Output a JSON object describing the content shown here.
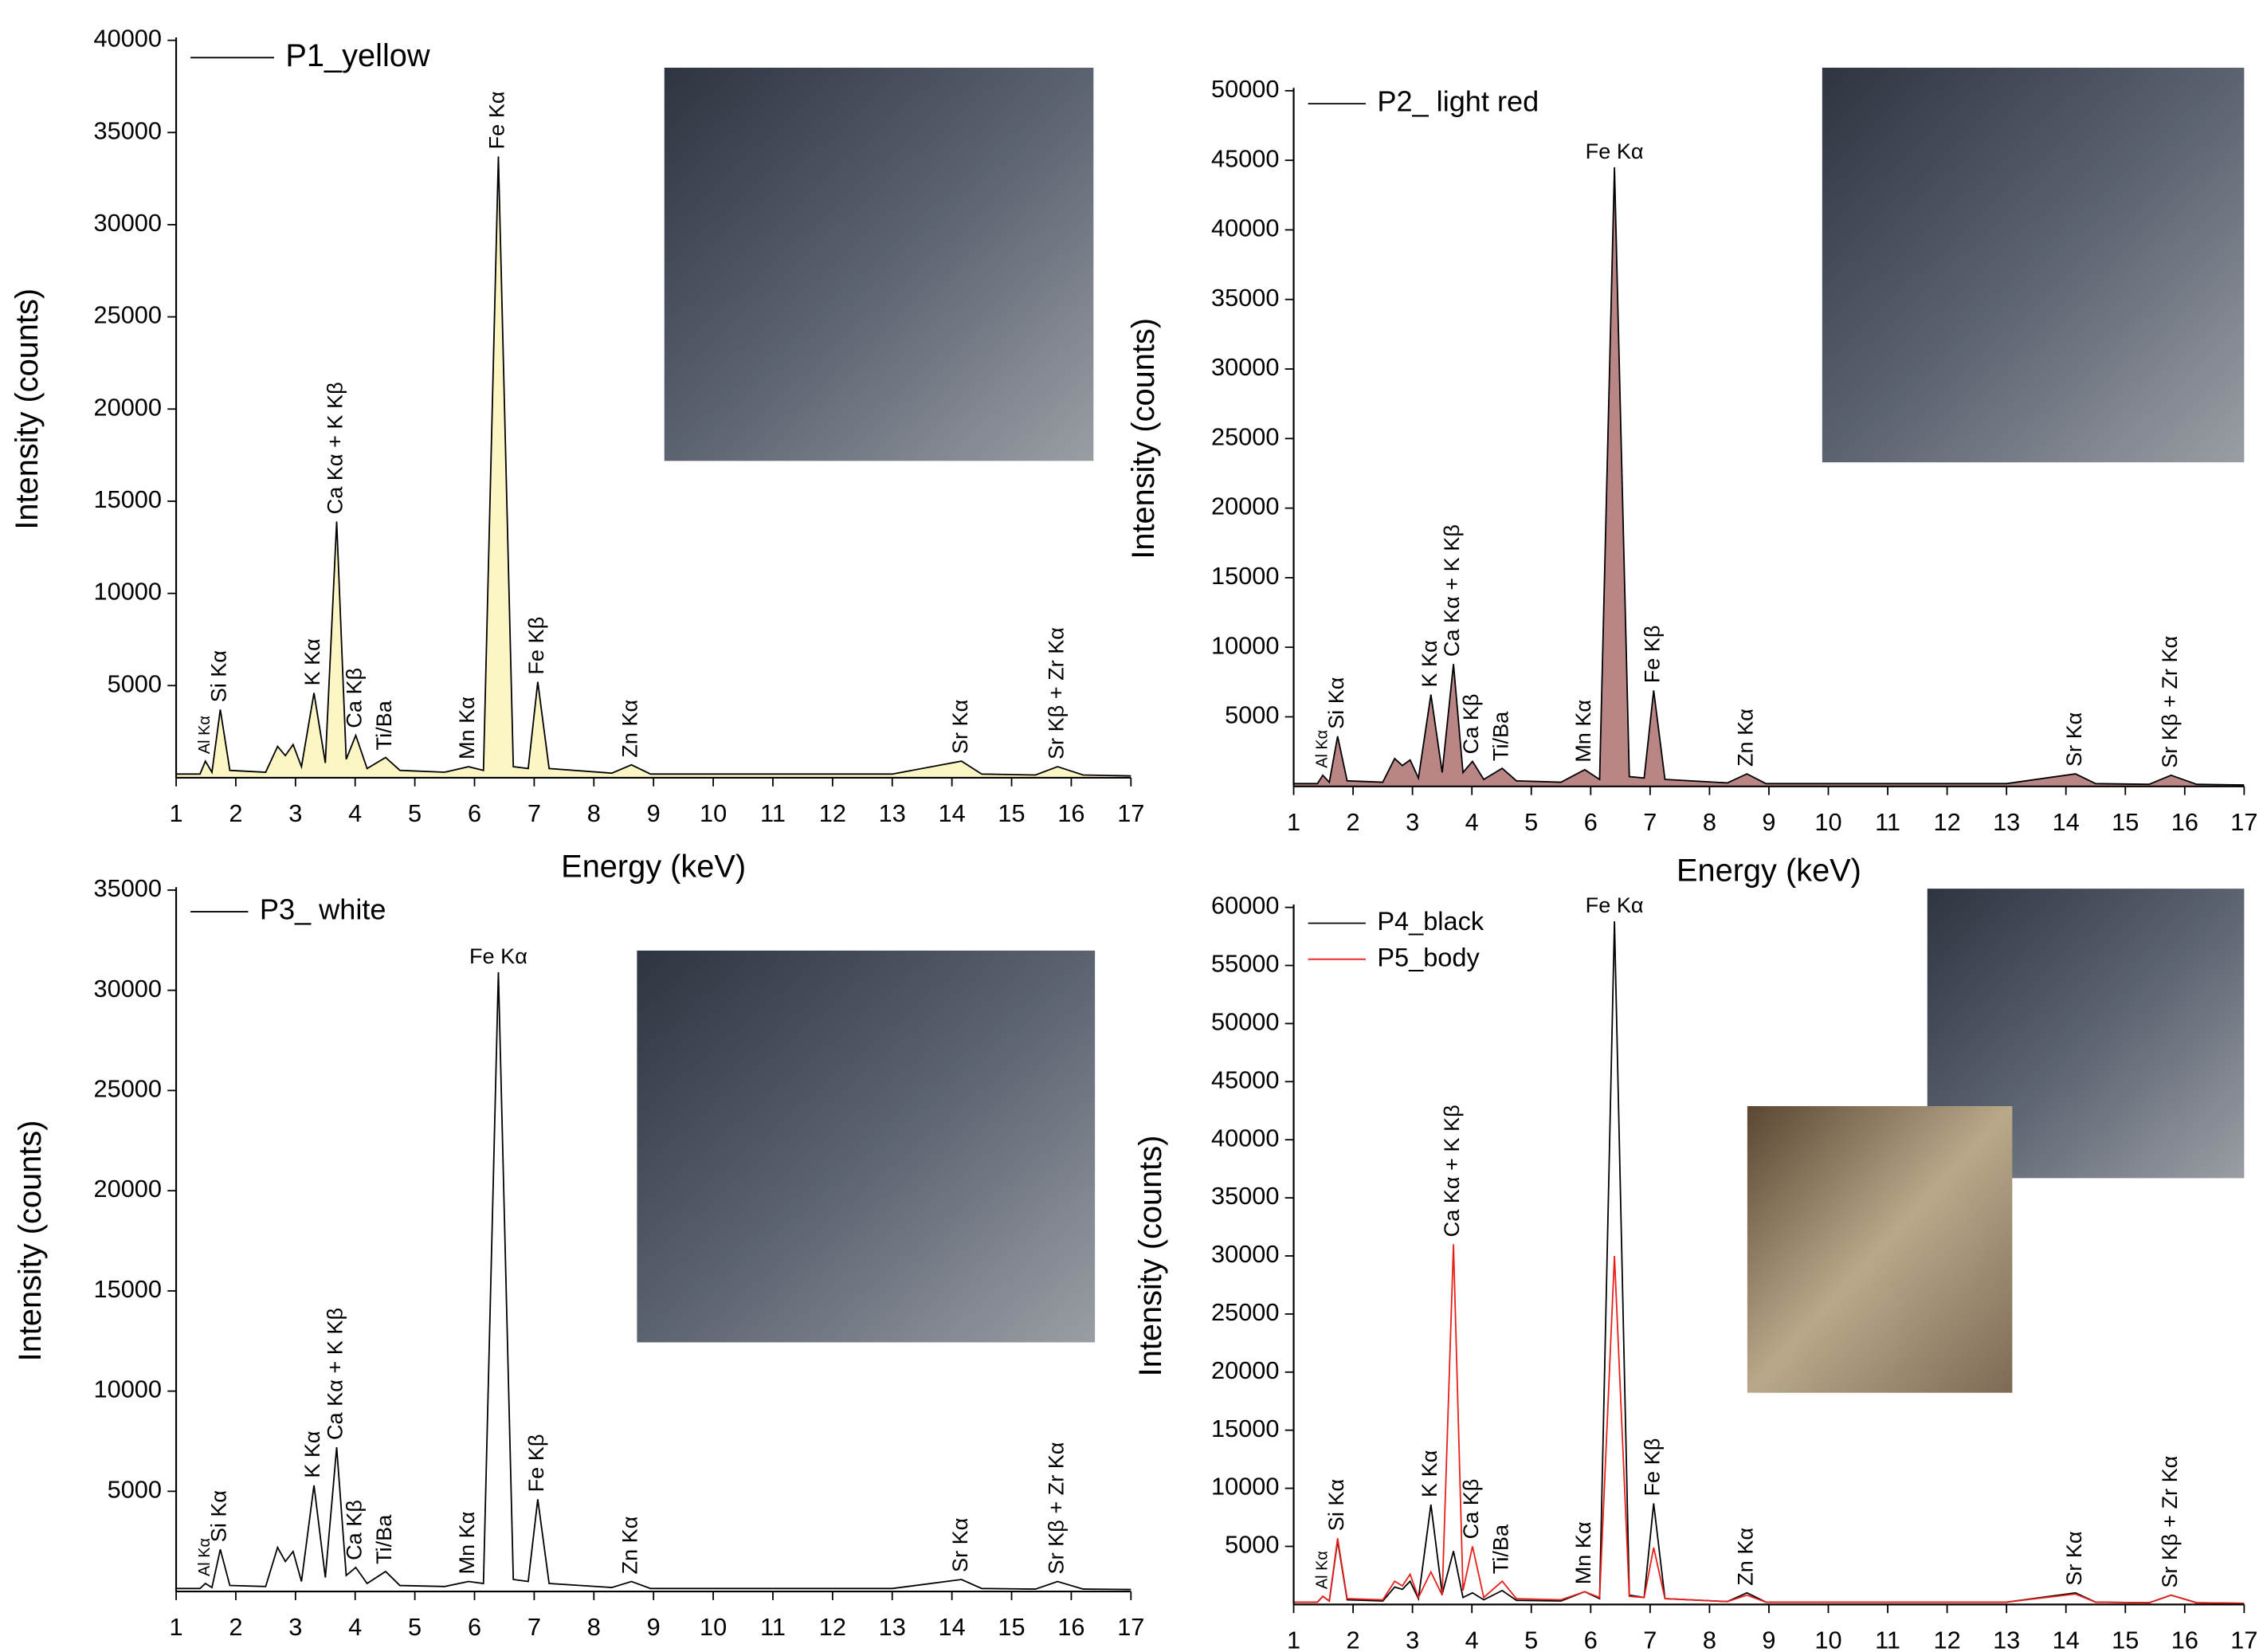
{
  "chart_data": [
    {
      "type": "line",
      "legend": "top-left",
      "x": [
        1,
        1.4,
        1.49,
        1.6,
        1.74,
        1.9,
        2.5,
        2.7,
        2.83,
        2.96,
        3.1,
        3.31,
        3.5,
        3.69,
        3.85,
        4.01,
        4.2,
        4.51,
        4.75,
        5.5,
        5.9,
        6.15,
        6.4,
        6.65,
        6.9,
        7.06,
        7.25,
        8.3,
        8.63,
        8.95,
        13,
        14.16,
        14.5,
        15.4,
        15.77,
        16.2,
        17
      ],
      "series": [
        {
          "name": "P1_yellow",
          "color": "#000000",
          "fill": "#fbf6c4",
          "values": [
            200,
            200,
            900,
            300,
            3700,
            400,
            300,
            1700,
            1200,
            1800,
            600,
            4600,
            800,
            13900,
            1000,
            2300,
            500,
            1100,
            400,
            300,
            600,
            400,
            33700,
            600,
            500,
            5200,
            500,
            250,
            700,
            200,
            200,
            900,
            200,
            150,
            600,
            150,
            100
          ]
        }
      ],
      "xlim": [
        1,
        17
      ],
      "xticks": [
        1,
        2,
        3,
        4,
        5,
        6,
        7,
        8,
        9,
        10,
        11,
        12,
        13,
        14,
        15,
        16,
        17
      ],
      "ylim": [
        0,
        40000
      ],
      "yticks": [
        5000,
        10000,
        15000,
        20000,
        25000,
        30000,
        35000,
        40000
      ],
      "xlabel": "Energy (keV)",
      "ylabel": "Intensity (counts)",
      "annotations": [
        {
          "text": "Al Kα",
          "x": 1.49
        },
        {
          "text": "Si Kα",
          "x": 1.74
        },
        {
          "text": "K Kα",
          "x": 3.31
        },
        {
          "text": "Ca Kα + K Kβ",
          "x": 3.69
        },
        {
          "text": "Ca Kβ",
          "x": 4.01
        },
        {
          "text": "Ti/Ba",
          "x": 4.51
        },
        {
          "text": "Mn Kα",
          "x": 5.9
        },
        {
          "text": "Fe Kα",
          "x": 6.4
        },
        {
          "text": "Fe Kβ",
          "x": 7.06
        },
        {
          "text": "Zn Kα",
          "x": 8.63
        },
        {
          "text": "Sr Kα",
          "x": 14.16
        },
        {
          "text": "Sr Kβ + Zr Kα",
          "x": 15.77
        }
      ]
    },
    {
      "type": "line",
      "legend": "top-left",
      "x": [
        1,
        1.4,
        1.49,
        1.6,
        1.74,
        1.9,
        2.5,
        2.7,
        2.83,
        2.96,
        3.1,
        3.31,
        3.5,
        3.69,
        3.85,
        4.01,
        4.2,
        4.51,
        4.75,
        5.5,
        5.9,
        6.15,
        6.4,
        6.65,
        6.9,
        7.06,
        7.25,
        8.3,
        8.63,
        8.95,
        13,
        14.16,
        14.5,
        15.4,
        15.77,
        16.2,
        17
      ],
      "series": [
        {
          "name": "P2_ light red",
          "color": "#000000",
          "fill": "#b98585",
          "values": [
            200,
            200,
            800,
            300,
            3600,
            400,
            300,
            2000,
            1500,
            1900,
            600,
            6600,
            1000,
            8800,
            1000,
            1800,
            500,
            1300,
            400,
            300,
            1200,
            500,
            44500,
            700,
            600,
            6900,
            500,
            250,
            900,
            200,
            200,
            900,
            200,
            150,
            800,
            150,
            100
          ]
        }
      ],
      "xlim": [
        1,
        17
      ],
      "xticks": [
        1,
        2,
        3,
        4,
        5,
        6,
        7,
        8,
        9,
        10,
        11,
        12,
        13,
        14,
        15,
        16,
        17
      ],
      "ylim": [
        0,
        50000
      ],
      "yticks": [
        5000,
        10000,
        15000,
        20000,
        25000,
        30000,
        35000,
        40000,
        45000,
        50000
      ],
      "xlabel": "Energy (keV)",
      "ylabel": "Intensity (counts)",
      "annotations": [
        {
          "text": "Al Kα",
          "x": 1.49
        },
        {
          "text": "Si Kα",
          "x": 1.74
        },
        {
          "text": "K Kα",
          "x": 3.31
        },
        {
          "text": "Ca Kα + K Kβ",
          "x": 3.69
        },
        {
          "text": "Ca Kβ",
          "x": 4.01
        },
        {
          "text": "Ti/Ba",
          "x": 4.51
        },
        {
          "text": "Mn Kα",
          "x": 5.9
        },
        {
          "text": "Fe Kα",
          "x": 6.4
        },
        {
          "text": "Fe Kβ",
          "x": 7.06
        },
        {
          "text": "Zn Kα",
          "x": 8.63
        },
        {
          "text": "Sr Kα",
          "x": 14.16
        },
        {
          "text": "Sr Kβ + Zr Kα",
          "x": 15.77
        }
      ]
    },
    {
      "type": "line",
      "legend": "top-left",
      "x": [
        1,
        1.4,
        1.49,
        1.6,
        1.74,
        1.9,
        2.5,
        2.7,
        2.83,
        2.96,
        3.1,
        3.31,
        3.5,
        3.69,
        3.85,
        4.01,
        4.2,
        4.51,
        4.75,
        5.5,
        5.9,
        6.15,
        6.4,
        6.65,
        6.9,
        7.06,
        7.25,
        8.3,
        8.63,
        8.95,
        13,
        14.16,
        14.5,
        15.4,
        15.77,
        16.2,
        17
      ],
      "series": [
        {
          "name": "P3_ white",
          "color": "#000000",
          "values": [
            150,
            150,
            400,
            200,
            2100,
            300,
            250,
            2200,
            1500,
            2000,
            500,
            5300,
            700,
            7200,
            800,
            1200,
            400,
            1000,
            300,
            250,
            500,
            400,
            30900,
            600,
            500,
            4600,
            400,
            200,
            500,
            150,
            150,
            600,
            150,
            120,
            500,
            120,
            100
          ]
        }
      ],
      "xlim": [
        1,
        17
      ],
      "xticks": [
        1,
        2,
        3,
        4,
        5,
        6,
        7,
        8,
        9,
        10,
        11,
        12,
        13,
        14,
        15,
        16,
        17
      ],
      "ylim": [
        0,
        35000
      ],
      "yticks": [
        5000,
        10000,
        15000,
        20000,
        25000,
        30000,
        35000
      ],
      "ylabel": "Intensity (counts)",
      "annotations": [
        {
          "text": "Al Kα",
          "x": 1.49
        },
        {
          "text": "Si Kα",
          "x": 1.74
        },
        {
          "text": "K Kα",
          "x": 3.31
        },
        {
          "text": "Ca Kα + K Kβ",
          "x": 3.69
        },
        {
          "text": "Ca Kβ",
          "x": 4.01
        },
        {
          "text": "Ti/Ba",
          "x": 4.51
        },
        {
          "text": "Mn Kα",
          "x": 5.9
        },
        {
          "text": "Fe Kα",
          "x": 6.4
        },
        {
          "text": "Fe Kβ",
          "x": 7.06
        },
        {
          "text": "Zn Kα",
          "x": 8.63
        },
        {
          "text": "Sr Kα",
          "x": 14.16
        },
        {
          "text": "Sr Kβ + Zr Kα",
          "x": 15.77
        }
      ]
    },
    {
      "type": "line",
      "legend": "top-left",
      "x": [
        1,
        1.4,
        1.49,
        1.6,
        1.74,
        1.9,
        2.5,
        2.7,
        2.83,
        2.96,
        3.1,
        3.31,
        3.5,
        3.69,
        3.85,
        4.01,
        4.2,
        4.51,
        4.75,
        5.5,
        5.9,
        6.15,
        6.4,
        6.65,
        6.9,
        7.06,
        7.25,
        8.3,
        8.63,
        8.95,
        13,
        14.16,
        14.5,
        15.4,
        15.77,
        16.2,
        17
      ],
      "series": [
        {
          "name": "P4_black",
          "color": "#000000",
          "values": [
            200,
            200,
            700,
            300,
            5500,
            400,
            300,
            1500,
            1300,
            2000,
            500,
            8600,
            900,
            4600,
            600,
            1000,
            400,
            1200,
            350,
            300,
            1100,
            500,
            58800,
            800,
            600,
            8700,
            500,
            250,
            1000,
            200,
            200,
            1000,
            200,
            150,
            800,
            150,
            100
          ]
        },
        {
          "name": "P5_body",
          "color": "#e8201c",
          "values": [
            200,
            200,
            700,
            300,
            5700,
            500,
            400,
            2000,
            1600,
            2600,
            600,
            2800,
            800,
            31000,
            1200,
            5000,
            600,
            2000,
            500,
            400,
            1100,
            600,
            30000,
            700,
            600,
            4900,
            500,
            250,
            800,
            200,
            200,
            900,
            200,
            150,
            800,
            150,
            100
          ]
        }
      ],
      "xlim": [
        1,
        17
      ],
      "xticks": [
        1,
        2,
        3,
        4,
        5,
        6,
        7,
        8,
        9,
        10,
        11,
        12,
        13,
        14,
        15,
        16,
        17
      ],
      "ylim": [
        0,
        60000
      ],
      "yticks": [
        5000,
        10000,
        15000,
        20000,
        25000,
        30000,
        35000,
        40000,
        45000,
        50000,
        55000,
        60000
      ],
      "ylabel": "Intensity (counts)",
      "annotations": [
        {
          "text": "Al Kα",
          "x": 1.49
        },
        {
          "text": "Si Kα",
          "x": 1.74
        },
        {
          "text": "K Kα",
          "x": 3.31
        },
        {
          "text": "Ca Kα + K Kβ",
          "x": 3.69
        },
        {
          "text": "Ca Kβ",
          "x": 4.01
        },
        {
          "text": "Ti/Ba",
          "x": 4.51
        },
        {
          "text": "Mn Kα",
          "x": 5.9
        },
        {
          "text": "Fe Kα",
          "x": 6.4
        },
        {
          "text": "Fe Kβ",
          "x": 7.06
        },
        {
          "text": "Zn Kα",
          "x": 8.63
        },
        {
          "text": "Sr Kα",
          "x": 14.16
        },
        {
          "text": "Sr Kβ + Zr Kα",
          "x": 15.77
        }
      ]
    }
  ]
}
